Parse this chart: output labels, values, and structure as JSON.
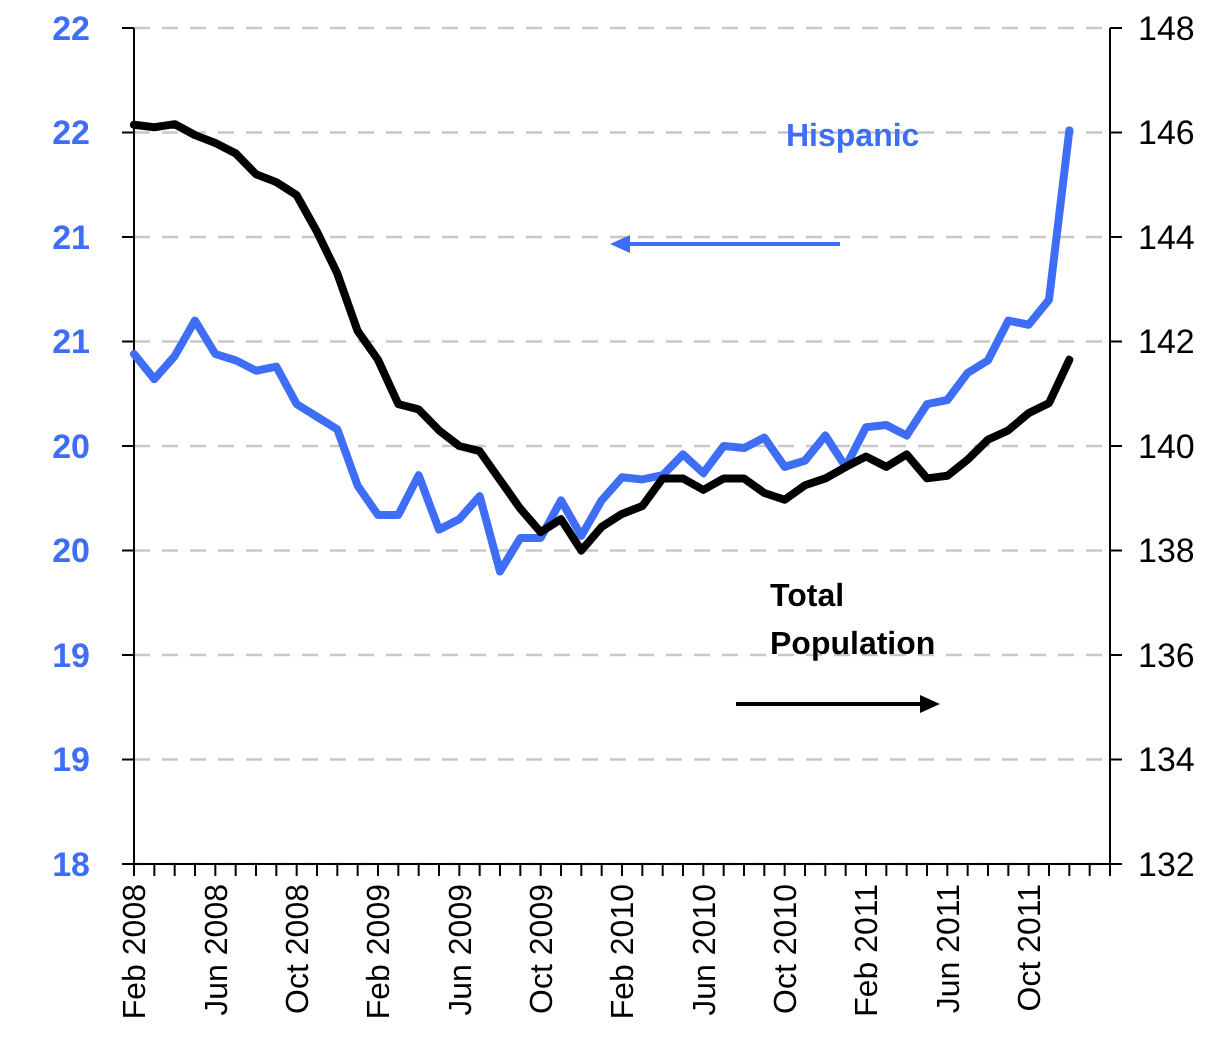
{
  "chart_data": {
    "type": "line",
    "categories": [
      "Feb 2008",
      null,
      null,
      null,
      "Jun 2008",
      null,
      null,
      null,
      "Oct 2008",
      null,
      null,
      null,
      "Feb 2009",
      null,
      null,
      null,
      "Jun 2009",
      null,
      null,
      null,
      "Oct 2009",
      null,
      null,
      null,
      "Feb 2010",
      null,
      null,
      null,
      "Jun 2010",
      null,
      null,
      null,
      "Oct 2010",
      null,
      null,
      null,
      "Feb 2011",
      null,
      null,
      null,
      "Jun 2011",
      null,
      null,
      null,
      "Oct 2011",
      null,
      null
    ],
    "series": [
      {
        "name": "Hispanic",
        "color": "#3d6ef5",
        "axis": "y",
        "values": [
          20.44,
          20.32,
          20.43,
          20.6,
          20.44,
          20.41,
          20.36,
          20.38,
          20.2,
          20.14,
          20.08,
          19.81,
          19.67,
          19.67,
          19.86,
          19.6,
          19.65,
          19.76,
          19.4,
          19.56,
          19.56,
          19.74,
          19.57,
          19.74,
          19.85,
          19.84,
          19.86,
          19.96,
          19.87,
          20.0,
          19.99,
          20.04,
          19.9,
          19.93,
          20.05,
          19.9,
          20.09,
          20.1,
          20.05,
          20.2,
          20.22,
          20.35,
          20.41,
          20.6,
          20.58,
          20.7,
          21.51
        ]
      },
      {
        "name": "Total Population",
        "color": "#000000",
        "axis": "y2",
        "values": [
          146.15,
          146.1,
          146.16,
          145.95,
          145.8,
          145.6,
          145.2,
          145.05,
          144.8,
          144.1,
          143.3,
          142.2,
          141.65,
          140.8,
          140.7,
          140.3,
          140.0,
          139.9,
          139.35,
          138.8,
          138.35,
          138.6,
          138.0,
          138.45,
          138.7,
          138.85,
          139.38,
          139.38,
          139.16,
          139.38,
          139.38,
          139.1,
          138.97,
          139.25,
          139.38,
          139.6,
          139.8,
          139.6,
          139.84,
          139.38,
          139.43,
          139.74,
          140.12,
          140.3,
          140.63,
          140.82,
          141.65
        ]
      }
    ],
    "ylim": [
      18,
      22
    ],
    "yticks": [
      18,
      {
        "value": 18.5,
        "label": "19"
      },
      19,
      {
        "value": 19.5,
        "label": "20"
      },
      20,
      {
        "value": 20.5,
        "label": "21"
      },
      21,
      {
        "value": 21.5,
        "label": "22"
      },
      22
    ],
    "y2lim": [
      132,
      148
    ],
    "y2ticks": [
      132,
      134,
      136,
      138,
      140,
      142,
      144,
      146,
      148
    ],
    "grid": "y",
    "marker": "none",
    "line_style": "solid"
  }
}
